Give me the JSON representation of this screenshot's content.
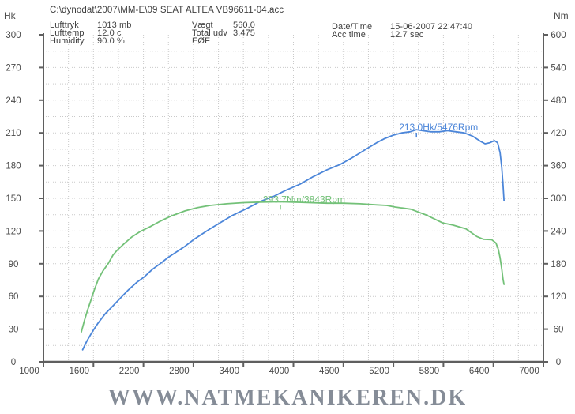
{
  "header": {
    "file_path": "C:\\dynodat\\2007\\MM-E\\09 SEAT ALTEA VB96611-04.acc",
    "env_rows": [
      {
        "label": "Lufttryk",
        "value": "1013 mb"
      },
      {
        "label": "Lufttemp",
        "value": "12.0 c"
      },
      {
        "label": "Humidity",
        "value": "90.0 %"
      }
    ],
    "vehicle_rows": [
      {
        "label": "Vægt",
        "value": "560.0"
      },
      {
        "label": "Total udv",
        "value": "3.475"
      },
      {
        "label": "EØF",
        "value": ""
      }
    ],
    "session_rows": [
      {
        "label": "Date/Time",
        "value": "15-06-2007 22:47:40"
      },
      {
        "label": "Acc time",
        "value": "12.7 sec"
      }
    ]
  },
  "watermark": "WWW.NATMEKANIKEREN.DK",
  "colors": {
    "power": "#4c86d9",
    "torque": "#73c178",
    "grid": "#c9c9c9",
    "axis": "#5f5f5f",
    "tick_text": "#4a4a4a",
    "watermark": "#858c97"
  },
  "chart_data": {
    "type": "line",
    "title": "",
    "xlabel": "",
    "x_axis": {
      "min": 1000,
      "max": 7000,
      "grid_step": 300,
      "ticks": [
        1000,
        1600,
        2200,
        2800,
        3400,
        4000,
        4600,
        5200,
        5800,
        6400,
        7000
      ]
    },
    "y_left": {
      "label": "Hk",
      "min": 0,
      "max": 300,
      "grid_step": 15,
      "ticks": [
        0,
        30,
        60,
        90,
        120,
        150,
        180,
        210,
        240,
        270,
        300
      ]
    },
    "y_right": {
      "label": "Nm",
      "min": 0,
      "max": 600,
      "ticks": [
        0,
        60,
        120,
        180,
        240,
        300,
        360,
        420,
        480,
        540,
        600
      ]
    },
    "grid": true,
    "legend": "none",
    "series": [
      {
        "name": "power",
        "unit": "Hk",
        "axis": "left",
        "color": "#4c86d9",
        "peak_label": "213.0Hk/5476Rpm",
        "peak": {
          "rpm": 5476,
          "value": 213.0
        },
        "points": [
          [
            1470,
            11
          ],
          [
            1520,
            19
          ],
          [
            1590,
            28
          ],
          [
            1650,
            35
          ],
          [
            1740,
            44
          ],
          [
            1830,
            51
          ],
          [
            1930,
            59
          ],
          [
            2020,
            66
          ],
          [
            2120,
            73
          ],
          [
            2210,
            78
          ],
          [
            2310,
            85
          ],
          [
            2400,
            90
          ],
          [
            2500,
            96
          ],
          [
            2600,
            101
          ],
          [
            2700,
            106
          ],
          [
            2800,
            112
          ],
          [
            2900,
            117
          ],
          [
            3000,
            122
          ],
          [
            3130,
            128
          ],
          [
            3260,
            134
          ],
          [
            3450,
            141
          ],
          [
            3600,
            147
          ],
          [
            3770,
            152
          ],
          [
            3900,
            157
          ],
          [
            4080,
            163
          ],
          [
            4240,
            170
          ],
          [
            4400,
            176
          ],
          [
            4560,
            181
          ],
          [
            4700,
            187
          ],
          [
            4870,
            195
          ],
          [
            5000,
            201
          ],
          [
            5100,
            205
          ],
          [
            5200,
            208
          ],
          [
            5300,
            210
          ],
          [
            5400,
            211
          ],
          [
            5476,
            213
          ],
          [
            5550,
            212
          ],
          [
            5650,
            211
          ],
          [
            5750,
            211
          ],
          [
            5850,
            212
          ],
          [
            5950,
            211
          ],
          [
            6050,
            210
          ],
          [
            6150,
            207
          ],
          [
            6250,
            202
          ],
          [
            6300,
            200
          ],
          [
            6360,
            201
          ],
          [
            6410,
            203
          ],
          [
            6450,
            201
          ],
          [
            6480,
            192
          ],
          [
            6500,
            178
          ],
          [
            6515,
            163
          ],
          [
            6527,
            148
          ]
        ]
      },
      {
        "name": "torque",
        "unit": "Nm",
        "axis": "right",
        "color": "#73c178",
        "peak_label": "293.7Nm/3843Rpm",
        "peak": {
          "rpm": 3843,
          "value": 293.7
        },
        "points": [
          [
            1455,
            55
          ],
          [
            1490,
            75
          ],
          [
            1530,
            95
          ],
          [
            1570,
            113
          ],
          [
            1610,
            132
          ],
          [
            1660,
            152
          ],
          [
            1715,
            167
          ],
          [
            1780,
            181
          ],
          [
            1835,
            196
          ],
          [
            1885,
            205
          ],
          [
            1970,
            217
          ],
          [
            2060,
            229
          ],
          [
            2160,
            239
          ],
          [
            2280,
            248
          ],
          [
            2400,
            258
          ],
          [
            2540,
            268
          ],
          [
            2700,
            277
          ],
          [
            2850,
            283
          ],
          [
            3000,
            287
          ],
          [
            3200,
            290
          ],
          [
            3400,
            292
          ],
          [
            3600,
            293
          ],
          [
            3843,
            293.7
          ],
          [
            4000,
            293
          ],
          [
            4200,
            292
          ],
          [
            4400,
            291
          ],
          [
            4600,
            291
          ],
          [
            4800,
            290
          ],
          [
            5000,
            288
          ],
          [
            5120,
            287
          ],
          [
            5220,
            284
          ],
          [
            5410,
            280
          ],
          [
            5600,
            269
          ],
          [
            5790,
            255
          ],
          [
            5910,
            251
          ],
          [
            6070,
            244
          ],
          [
            6200,
            230
          ],
          [
            6280,
            225
          ],
          [
            6380,
            224
          ],
          [
            6430,
            218
          ],
          [
            6460,
            206
          ],
          [
            6480,
            191
          ],
          [
            6500,
            170
          ],
          [
            6515,
            152
          ],
          [
            6527,
            142
          ]
        ]
      }
    ]
  }
}
